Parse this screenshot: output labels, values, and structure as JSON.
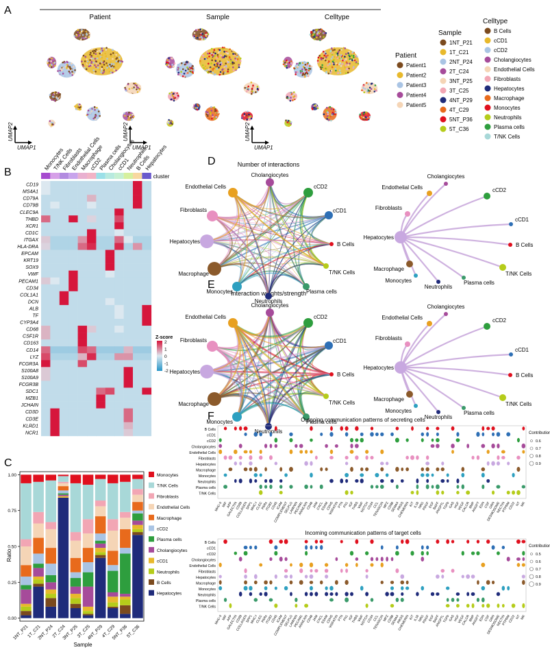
{
  "panel_letters": {
    "A": "A",
    "B": "B",
    "C": "C",
    "D": "D",
    "E": "E",
    "F": "F"
  },
  "panelA": {
    "titles": [
      "Patient",
      "Sample",
      "Celltype"
    ],
    "umap1": "UMAP1",
    "umap2": "UMAP2",
    "legend_patient": {
      "title": "Patient",
      "items": [
        {
          "label": "Patient1",
          "color": "#7b4a1e"
        },
        {
          "label": "Patient2",
          "color": "#e8b92c"
        },
        {
          "label": "Patient3",
          "color": "#a9c4e4"
        },
        {
          "label": "Patient4",
          "color": "#a64b9a"
        },
        {
          "label": "Patient5",
          "color": "#f5d5b6"
        }
      ]
    },
    "legend_sample": {
      "title": "Sample",
      "items": [
        {
          "label": "1NT_P21",
          "color": "#7b4a1e"
        },
        {
          "label": "1T_C21",
          "color": "#e8b92c"
        },
        {
          "label": "2NT_P24",
          "color": "#a9c4e4"
        },
        {
          "label": "2T_C24",
          "color": "#a64b9a"
        },
        {
          "label": "3NT_P25",
          "color": "#f5d5b6"
        },
        {
          "label": "3T_C25",
          "color": "#f2a6b4"
        },
        {
          "label": "4NT_P29",
          "color": "#1f2b7a"
        },
        {
          "label": "4T_C29",
          "color": "#e86a1c"
        },
        {
          "label": "5NT_P36",
          "color": "#e0101e"
        },
        {
          "label": "5T_C36",
          "color": "#b5cc1a"
        }
      ]
    },
    "legend_celltype": {
      "title": "Celltype",
      "items": [
        {
          "label": "B Cells",
          "color": "#7b4a1e"
        },
        {
          "label": "cCD1",
          "color": "#e8b92c"
        },
        {
          "label": "cCD2",
          "color": "#a9c4e4"
        },
        {
          "label": "Cholangiocytes",
          "color": "#a64b9a"
        },
        {
          "label": "Endothelial Cells",
          "color": "#f5d5b6"
        },
        {
          "label": "Fibroblasts",
          "color": "#f2a6b4"
        },
        {
          "label": "Hepatocytes",
          "color": "#1f2b7a"
        },
        {
          "label": "Macrophage",
          "color": "#e86a1c"
        },
        {
          "label": "Monocytes",
          "color": "#e0101e"
        },
        {
          "label": "Neutrophils",
          "color": "#b5cc1a"
        },
        {
          "label": "Plasma cells",
          "color": "#2e9e3e"
        },
        {
          "label": "T/NK Cells",
          "color": "#a8d8d8"
        }
      ]
    }
  },
  "panelB": {
    "clusters": [
      {
        "label": "Monocytes",
        "color": "#a64bcf"
      },
      {
        "label": "T/NK Cells",
        "color": "#d6a0e8"
      },
      {
        "label": "Fibroblasts",
        "color": "#b28be0"
      },
      {
        "label": "Endothelial Cells",
        "color": "#c8a4ec"
      },
      {
        "label": "Macrophage",
        "color": "#e9b0d0"
      },
      {
        "label": "cCD2",
        "color": "#f2b4c6"
      },
      {
        "label": "Plasma cells",
        "color": "#9be0e8"
      },
      {
        "label": "Cholangiocytes",
        "color": "#b8eadf"
      },
      {
        "label": "cCD1",
        "color": "#c6f0d2"
      },
      {
        "label": "Neutrophils",
        "color": "#d6f09e"
      },
      {
        "label": "B Cells",
        "color": "#f8d8a0"
      },
      {
        "label": "Hepatocytes",
        "color": "#6a5acd"
      }
    ],
    "cluster_label": "cluster",
    "genes": [
      "CD19",
      "MS4A1",
      "CD79A",
      "CD79B",
      "CLEC9A",
      "THBD",
      "XCR1",
      "CD1C",
      "ITGAX",
      "HLA-DRA",
      "EPCAM",
      "KRT19",
      "SOX9",
      "VWF",
      "PECAM1",
      "CD34",
      "COL1A1",
      "DCN",
      "ALB",
      "TF",
      "CYP3A4",
      "CD68",
      "CSF1R",
      "CD163",
      "CD14",
      "LYZ",
      "FCGR3A",
      "S100A8",
      "S100A9",
      "FCGR3B",
      "SDC1",
      "MZB1",
      "JCHAIN",
      "CD3D",
      "CD3E",
      "KLRD1",
      "NCR1"
    ],
    "zscore": [
      [
        0,
        -0.3,
        -0.3,
        -0.3,
        -0.3,
        -0.3,
        -0.3,
        -0.3,
        -0.3,
        -0.3,
        2,
        -0.3
      ],
      [
        0,
        -0.3,
        -0.3,
        -0.3,
        -0.3,
        -0.3,
        -0.3,
        -0.3,
        -0.3,
        -0.3,
        2,
        -0.3
      ],
      [
        -0.3,
        -0.3,
        -0.3,
        -0.3,
        -0.3,
        0.5,
        -0.3,
        -0.3,
        -0.3,
        -0.3,
        2,
        -0.3
      ],
      [
        -0.3,
        0,
        -0.3,
        -0.3,
        -0.3,
        0,
        -0.3,
        -0.3,
        -0.3,
        -0.3,
        2,
        -0.3
      ],
      [
        -0.3,
        -0.3,
        -0.3,
        -0.3,
        -0.3,
        -0.3,
        -0.3,
        -0.3,
        2,
        -0.3,
        -0.3,
        -0.3
      ],
      [
        1.2,
        -0.3,
        -0.3,
        2,
        -0.3,
        0.2,
        -0.3,
        -0.3,
        1.5,
        -0.3,
        -0.3,
        -0.3
      ],
      [
        -0.3,
        -0.3,
        -0.3,
        -0.3,
        -0.3,
        -0.3,
        -0.3,
        -0.3,
        2,
        -0.3,
        -0.3,
        -0.3
      ],
      [
        -0.3,
        -0.3,
        -0.3,
        -0.3,
        -0.3,
        2,
        -0.3,
        -0.3,
        0,
        -0.3,
        -0.3,
        -0.3
      ],
      [
        0.3,
        -0.5,
        -0.5,
        -0.5,
        0.8,
        2,
        -0.5,
        -0.5,
        1.2,
        0,
        -0.5,
        -0.5
      ],
      [
        0.2,
        -0.5,
        -0.5,
        -0.5,
        1.2,
        1.8,
        -0.5,
        -0.5,
        1.8,
        -0.5,
        0.8,
        -0.5
      ],
      [
        -0.3,
        -0.3,
        -0.3,
        -0.3,
        -0.3,
        -0.3,
        -0.3,
        2,
        -0.3,
        -0.3,
        -0.3,
        -0.3
      ],
      [
        -0.3,
        -0.3,
        -0.3,
        -0.3,
        -0.3,
        -0.3,
        -0.3,
        2,
        -0.3,
        -0.3,
        -0.3,
        -0.3
      ],
      [
        -0.3,
        -0.3,
        -0.3,
        -0.3,
        -0.3,
        -0.3,
        -0.3,
        2,
        -0.3,
        -0.3,
        -0.3,
        -0.3
      ],
      [
        -0.3,
        -0.3,
        -0.3,
        2,
        -0.3,
        -0.3,
        -0.3,
        0,
        -0.3,
        -0.3,
        -0.3,
        -0.3
      ],
      [
        0.3,
        0,
        -0.3,
        2,
        -0.3,
        -0.3,
        -0.3,
        -0.3,
        -0.3,
        -0.3,
        -0.3,
        -0.3
      ],
      [
        -0.3,
        -0.3,
        -0.3,
        2,
        -0.3,
        -0.3,
        -0.3,
        -0.3,
        -0.3,
        -0.3,
        -0.3,
        -0.3
      ],
      [
        -0.3,
        -0.3,
        2,
        -0.3,
        -0.3,
        -0.3,
        -0.3,
        -0.3,
        -0.3,
        -0.3,
        -0.3,
        -0.3
      ],
      [
        -0.3,
        -0.3,
        2,
        -0.3,
        -0.3,
        -0.3,
        -0.3,
        0,
        -0.3,
        -0.3,
        -0.3,
        -0.3
      ],
      [
        -0.3,
        -0.3,
        -0.3,
        -0.3,
        -0.3,
        -0.3,
        -0.3,
        -0.3,
        0,
        -0.3,
        -0.3,
        2
      ],
      [
        -0.3,
        -0.3,
        -0.3,
        -0.3,
        -0.3,
        -0.3,
        -0.3,
        -0.3,
        0,
        -0.3,
        -0.3,
        2
      ],
      [
        -0.3,
        -0.3,
        -0.3,
        -0.3,
        -0.3,
        -0.3,
        -0.3,
        -0.3,
        -0.3,
        -0.3,
        -0.3,
        2
      ],
      [
        0.5,
        -0.3,
        -0.3,
        -0.3,
        2,
        0.3,
        -0.3,
        -0.3,
        0,
        -0.3,
        -0.3,
        -0.3
      ],
      [
        0.5,
        -0.3,
        -0.3,
        -0.3,
        2,
        -0.3,
        -0.3,
        -0.3,
        -0.3,
        -0.3,
        -0.3,
        -0.3
      ],
      [
        -0.3,
        -0.3,
        -0.3,
        -0.3,
        2,
        -0.3,
        -0.3,
        -0.3,
        -0.3,
        -0.3,
        -0.3,
        -0.3
      ],
      [
        1.2,
        -0.7,
        -0.7,
        -0.7,
        1.5,
        1.2,
        -0.7,
        -0.7,
        -0.7,
        0.5,
        -0.7,
        -0.7
      ],
      [
        1.5,
        -0.5,
        -0.5,
        -0.5,
        0.5,
        1.8,
        -0.5,
        -0.5,
        0.8,
        0.8,
        -0.5,
        -0.5
      ],
      [
        2,
        -0.3,
        -0.3,
        -0.3,
        1.5,
        -0.3,
        -0.3,
        -0.3,
        -0.3,
        -0.3,
        -0.3,
        -0.3
      ],
      [
        0.3,
        -0.3,
        -0.3,
        -0.3,
        -0.3,
        -0.3,
        -0.3,
        -0.3,
        -0.3,
        2,
        -0.3,
        -0.3
      ],
      [
        0.3,
        -0.3,
        -0.3,
        -0.3,
        -0.3,
        -0.3,
        -0.3,
        -0.3,
        -0.3,
        2,
        -0.3,
        -0.3
      ],
      [
        -0.3,
        -0.3,
        -0.3,
        -0.3,
        -0.3,
        -0.3,
        -0.3,
        -0.3,
        -0.3,
        2,
        -0.3,
        -0.3
      ],
      [
        -0.3,
        -0.3,
        -0.3,
        -0.3,
        -0.3,
        -0.3,
        1.2,
        1.5,
        -0.3,
        -0.3,
        -0.3,
        2
      ],
      [
        -0.3,
        -0.3,
        -0.3,
        -0.3,
        -0.3,
        -0.3,
        2,
        -0.3,
        -0.3,
        -0.3,
        -0.3,
        -0.3
      ],
      [
        -0.3,
        -0.3,
        -0.3,
        -0.3,
        -0.3,
        -0.3,
        2,
        -0.3,
        -0.3,
        -0.3,
        -0.3,
        -0.3
      ],
      [
        -0.3,
        2,
        -0.3,
        -0.3,
        -0.3,
        -0.3,
        -0.3,
        -0.3,
        -0.3,
        1.2,
        -0.3,
        -0.3
      ],
      [
        -0.3,
        2,
        -0.3,
        -0.3,
        -0.3,
        -0.3,
        -0.3,
        -0.3,
        -0.3,
        1.2,
        -0.3,
        -0.3
      ],
      [
        -0.3,
        2,
        -0.3,
        -0.3,
        -0.3,
        -0.3,
        -0.3,
        -0.3,
        -0.3,
        0.5,
        -0.3,
        -0.3
      ],
      [
        -0.3,
        2,
        -0.3,
        -0.3,
        -0.3,
        -0.3,
        -0.3,
        -0.3,
        -0.3,
        0.3,
        -0.3,
        -0.3
      ]
    ],
    "legend_title": "Z-score",
    "legend_ticks": [
      "2",
      "1",
      "0",
      "-1",
      "-2"
    ]
  },
  "chart_data": [
    {
      "type": "bar",
      "panel": "C",
      "stacked": true,
      "categories": [
        "1NT_P21",
        "1T_C21",
        "2NT_P24",
        "2T_C24",
        "3NT_P25",
        "3T_C25",
        "4NT_P29",
        "4T_C29",
        "5NT_P36",
        "5T_C36"
      ],
      "xlabel": "Sample",
      "ylabel": "Ratio",
      "ylim": [
        0,
        1
      ],
      "yticks": [
        "0.00",
        "0.25",
        "0.50",
        "0.75",
        "1.00"
      ],
      "series": [
        {
          "name": "Hepatocytes",
          "color": "#1f2b7a",
          "values": [
            0.02,
            0.22,
            0.08,
            0.84,
            0.07,
            0.02,
            0.42,
            0.07,
            0.03,
            0.58
          ]
        },
        {
          "name": "B Cells",
          "color": "#7b4a1e",
          "values": [
            0.03,
            0.02,
            0.06,
            0.0,
            0.03,
            0.01,
            0.02,
            0.01,
            0.06,
            0.02
          ]
        },
        {
          "name": "Neutrophils",
          "color": "#b5cc1a",
          "values": [
            0.03,
            0.03,
            0.03,
            0.0,
            0.04,
            0.02,
            0.02,
            0.03,
            0.04,
            0.02
          ]
        },
        {
          "name": "cCD1",
          "color": "#e8b92c",
          "values": [
            0.02,
            0.02,
            0.03,
            0.01,
            0.03,
            0.03,
            0.03,
            0.04,
            0.02,
            0.03
          ]
        },
        {
          "name": "Cholangiocytes",
          "color": "#a64b9a",
          "values": [
            0.1,
            0.06,
            0.05,
            0.01,
            0.05,
            0.14,
            0.03,
            0.03,
            0.02,
            0.03
          ]
        },
        {
          "name": "Plasma cells",
          "color": "#2e9e3e",
          "values": [
            0.03,
            0.03,
            0.05,
            0.01,
            0.06,
            0.1,
            0.02,
            0.15,
            0.28,
            0.05
          ]
        },
        {
          "name": "cCD2",
          "color": "#a9c4e4",
          "values": [
            0.06,
            0.07,
            0.08,
            0.02,
            0.04,
            0.07,
            0.05,
            0.04,
            0.04,
            0.02
          ]
        },
        {
          "name": "Macrophage",
          "color": "#e86a1c",
          "values": [
            0.08,
            0.11,
            0.11,
            0.03,
            0.1,
            0.1,
            0.12,
            0.1,
            0.13,
            0.06
          ]
        },
        {
          "name": "Endothelial Cells",
          "color": "#f5d5b6",
          "values": [
            0.13,
            0.1,
            0.13,
            0.02,
            0.12,
            0.1,
            0.07,
            0.14,
            0.08,
            0.05
          ]
        },
        {
          "name": "Fibroblasts",
          "color": "#f2a6b4",
          "values": [
            0.05,
            0.08,
            0.05,
            0.01,
            0.06,
            0.1,
            0.04,
            0.08,
            0.04,
            0.04
          ]
        },
        {
          "name": "T/NK Cells",
          "color": "#a8d8d8",
          "values": [
            0.39,
            0.21,
            0.29,
            0.04,
            0.34,
            0.24,
            0.15,
            0.25,
            0.21,
            0.07
          ]
        },
        {
          "name": "Monocytes",
          "color": "#e0101e",
          "values": [
            0.06,
            0.05,
            0.04,
            0.01,
            0.06,
            0.07,
            0.03,
            0.06,
            0.05,
            0.03
          ]
        }
      ]
    }
  ],
  "panelD": {
    "title": "Number of interactions",
    "nodes": [
      {
        "label": "Cholangiocytes",
        "color": "#a64b9a"
      },
      {
        "label": "cCD2",
        "color": "#2e9e3e"
      },
      {
        "label": "cCD1",
        "color": "#2e6fb5"
      },
      {
        "label": "B Cells",
        "color": "#e0101e"
      },
      {
        "label": "T/NK Cells",
        "color": "#b5cc1a"
      },
      {
        "label": "Plasma cells",
        "color": "#3a9a6a"
      },
      {
        "label": "Neutrophils",
        "color": "#1f2b7a"
      },
      {
        "label": "Monocytes",
        "color": "#2ea0c0"
      },
      {
        "label": "Macrophage",
        "color": "#8b5a2b"
      },
      {
        "label": "Hepatocytes",
        "color": "#c8a8e0"
      },
      {
        "label": "Fibroblasts",
        "color": "#e890c0"
      },
      {
        "label": "Endothelial Cells",
        "color": "#e8a020"
      }
    ]
  },
  "panelE": {
    "title": "Interaction weights/strength"
  },
  "panelF": {
    "outgoing_title": "Outgoing communication patterns of secreting cells",
    "incoming_title": "Incoming communication patterns of target cells",
    "cells": [
      "B Cells",
      "cCD1",
      "cCD2",
      "Cholangiocytes",
      "Endothelial Cells",
      "Fibroblasts",
      "Hepatocytes",
      "Macrophage",
      "Monocytes",
      "Neutrophils",
      "Plasma cells",
      "T/NK Cells"
    ],
    "cell_colors": [
      "#e0101e",
      "#2e6fb5",
      "#2e9e3e",
      "#a64b9a",
      "#e8a020",
      "#e890c0",
      "#c8a8e0",
      "#8b5a2b",
      "#2ea0c0",
      "#1f2b7a",
      "#3a9a6a",
      "#b5cc1a"
    ],
    "pathways": [
      "MHC-II",
      "MIF",
      "APP",
      "GALECTIN",
      "CD99",
      "COLLAGEN",
      "SPP1",
      "MHC-I",
      "CLEC",
      "PARs",
      "ITGB2",
      "CD45",
      "ICAM",
      "COMPLEMENT",
      "SELPLG",
      "LAMININ",
      "PECAM1",
      "ANNEXIN",
      "CD46",
      "JAM",
      "CXCL",
      "ESAM",
      "CDH5",
      "VISFATIN",
      "PTN",
      "FN1",
      "IGF",
      "THBS",
      "VWF",
      "NOTCH",
      "CD34",
      "CCL",
      "TENASCIN",
      "MPZ",
      "CD86",
      "SEMA4",
      "PROS",
      "CHEMERIN",
      "KIT",
      "IL16",
      "NRG",
      "PDGF",
      "EGF",
      "BAFF",
      "ANGPTL",
      "TGFb",
      "GAS",
      "HGF",
      "VEGF",
      "CALCR",
      "BMP",
      "ANGPT",
      "EDN",
      "CSF",
      "GRN",
      "DESMOSOME",
      "NECTIN",
      "PTPRM",
      "CD22",
      "NT",
      "MK"
    ],
    "contribution_title": "Contribution",
    "contribution_out": [
      "0.6",
      "0.7",
      "0.8",
      "0.9"
    ],
    "contribution_in": [
      "0.5",
      "0.6",
      "0.7",
      "0.8",
      "0.9"
    ]
  }
}
